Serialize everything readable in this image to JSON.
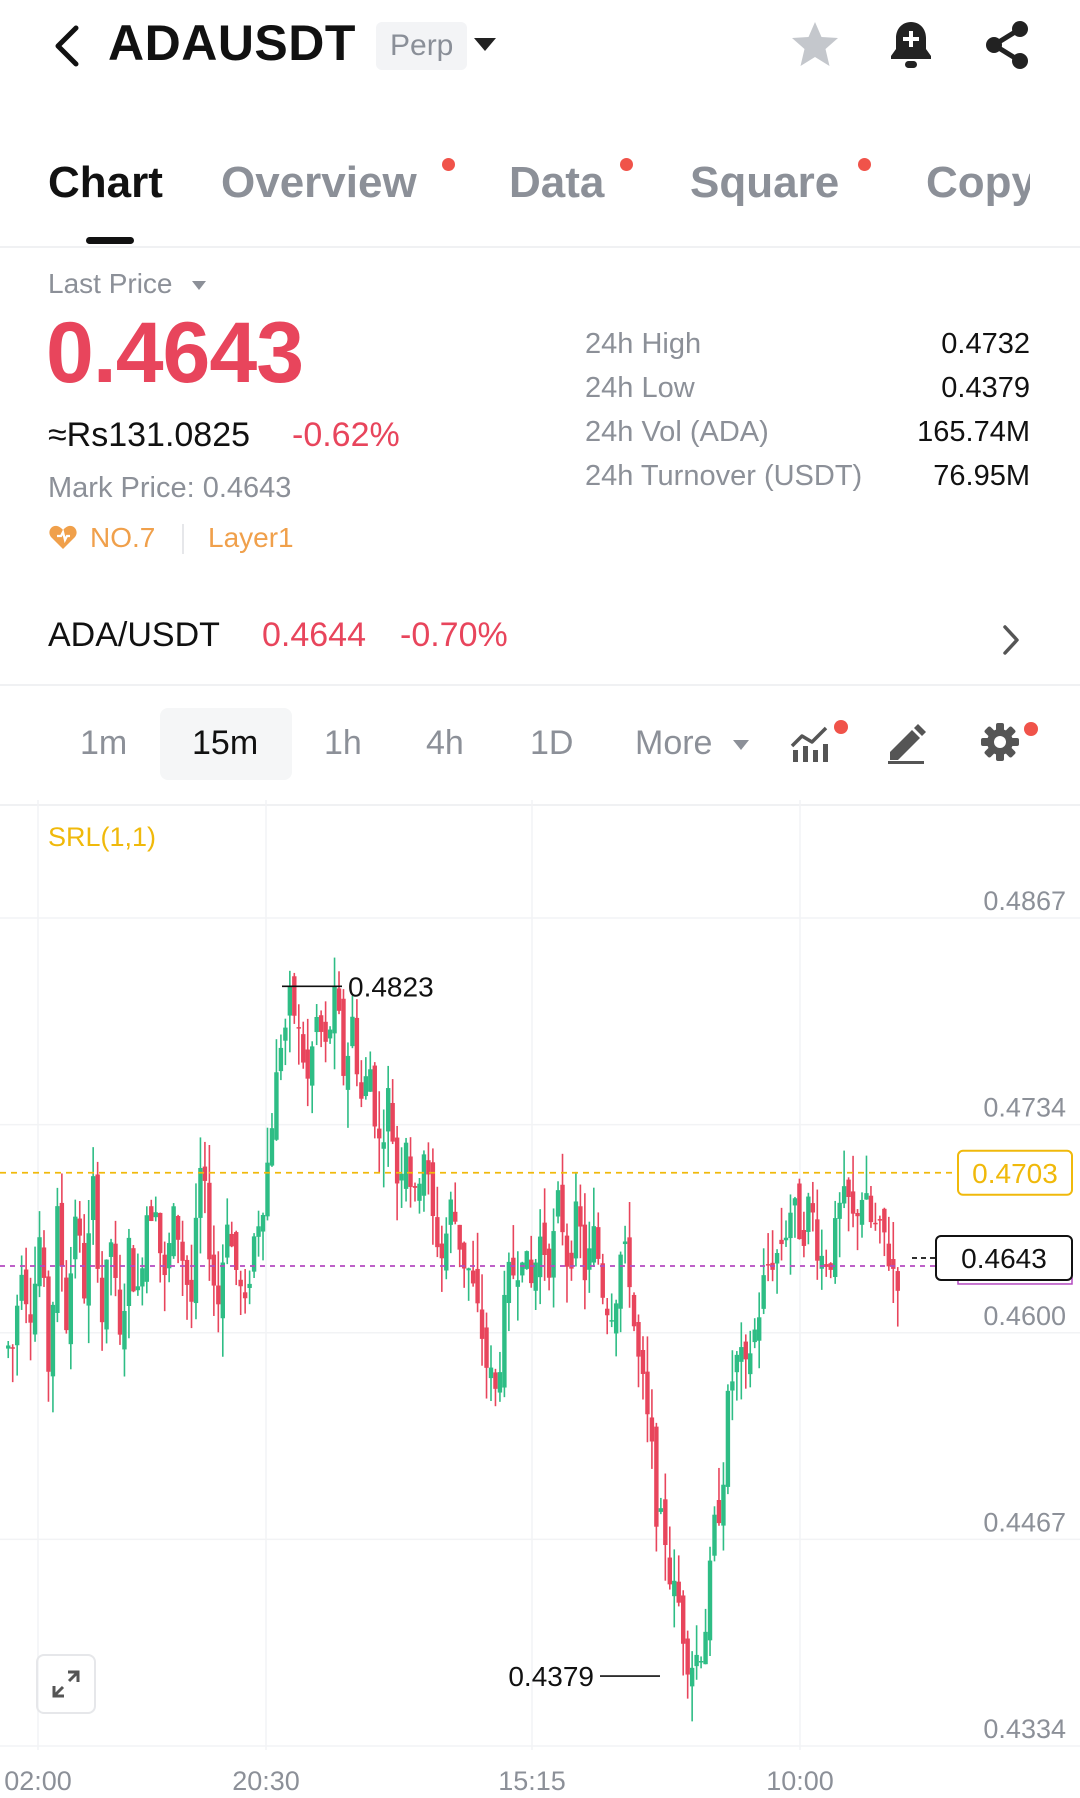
{
  "header": {
    "symbol": "ADAUSDT",
    "badge": "Perp",
    "icons": [
      "back-icon",
      "star-icon",
      "bell-plus-icon",
      "share-icon"
    ]
  },
  "tabs": [
    {
      "label": "Chart",
      "active": true,
      "dot": false
    },
    {
      "label": "Overview",
      "active": false,
      "dot": true
    },
    {
      "label": "Data",
      "active": false,
      "dot": true
    },
    {
      "label": "Square",
      "active": false,
      "dot": true
    },
    {
      "label": "Copy",
      "active": false,
      "dot": false
    }
  ],
  "price_block": {
    "last_price_label": "Last Price",
    "last_price": "0.4643",
    "approx": "≈Rs131.0825",
    "change": "-0.62%",
    "mark_label": "Mark Price:",
    "mark_value": "0.4643",
    "rank": "NO.7",
    "tag": "Layer1",
    "stats": [
      {
        "label": "24h High",
        "value": "0.4732"
      },
      {
        "label": "24h Low",
        "value": "0.4379"
      },
      {
        "label": "24h Vol (ADA)",
        "value": "165.74M"
      },
      {
        "label": "24h Turnover (USDT)",
        "value": "76.95M"
      }
    ]
  },
  "spot": {
    "pair": "ADA/USDT",
    "price": "0.4644",
    "change": "-0.70%"
  },
  "intervals": [
    "1m",
    "15m",
    "1h",
    "4h",
    "1D",
    "More"
  ],
  "active_interval": "15m",
  "colors": {
    "up": "#2ebd85",
    "down": "#e8455c",
    "accent": "#f0b90b"
  },
  "chart_data": {
    "type": "candlestick",
    "indicator": "SRL(1,1)",
    "y_ticks": [
      "0.4867",
      "0.4734",
      "0.4600",
      "0.4467",
      "0.4334"
    ],
    "ylim": [
      0.4334,
      0.4867
    ],
    "x_ticks": [
      "02:00",
      "20:30",
      "15:15",
      "10:00"
    ],
    "high_marker": "0.4823",
    "low_marker": "0.4379",
    "ref_line": "0.4703",
    "last_line": "0.4643",
    "close_path": [
      0.459,
      0.465,
      0.462,
      0.466,
      0.458,
      0.467,
      0.461,
      0.468,
      0.463,
      0.469,
      0.461,
      0.466,
      0.459,
      0.465,
      0.462,
      0.468,
      0.469,
      0.463,
      0.467,
      0.465,
      0.462,
      0.47,
      0.466,
      0.462,
      0.468,
      0.464,
      0.461,
      0.466,
      0.469,
      0.474,
      0.479,
      0.481,
      0.479,
      0.476,
      0.48,
      0.478,
      0.481,
      0.477,
      0.48,
      0.475,
      0.477,
      0.472,
      0.475,
      0.47,
      0.473,
      0.468,
      0.472,
      0.467,
      0.465,
      0.468,
      0.466,
      0.464,
      0.461,
      0.458,
      0.456,
      0.461,
      0.464,
      0.466,
      0.463,
      0.466,
      0.465,
      0.468,
      0.465,
      0.467,
      0.464,
      0.466,
      0.463,
      0.462,
      0.465,
      0.464,
      0.458,
      0.454,
      0.449,
      0.447,
      0.443,
      0.441,
      0.439,
      0.44,
      0.444,
      0.449,
      0.455,
      0.458,
      0.457,
      0.46,
      0.463,
      0.465,
      0.466,
      0.468,
      0.467,
      0.468,
      0.466,
      0.465,
      0.466,
      0.468,
      0.467,
      0.469,
      0.467,
      0.466,
      0.465,
      0.464
    ]
  }
}
